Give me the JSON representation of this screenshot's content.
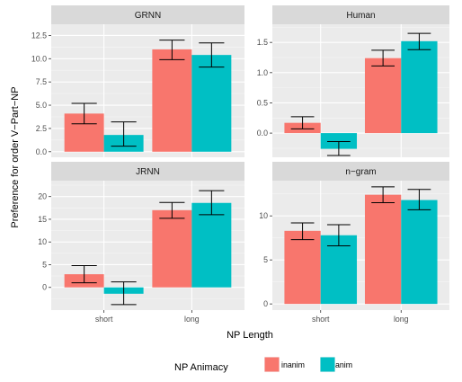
{
  "chart_data": {
    "type": "bar",
    "layout": "facet-grid 2x2",
    "xlabel": "NP Length",
    "ylabel": "Preference for order V−Part−NP",
    "categories": [
      "short",
      "long"
    ],
    "legend": {
      "title": "NP Animacy",
      "position": "bottom",
      "entries": [
        {
          "name": "inanim",
          "color": "#F8766D"
        },
        {
          "name": "anim",
          "color": "#00BFC4"
        }
      ]
    },
    "grid": true,
    "panel_background": "#EBEBEB",
    "strip_background": "#D9D9D9",
    "panels": [
      {
        "title": "GRNN",
        "ylim": [
          -0.6,
          13.7
        ],
        "yticks": [
          0,
          2.5,
          5,
          7.5,
          10,
          12.5
        ],
        "ytick_labels": [
          "0.0",
          "2.5",
          "5.0",
          "7.5",
          "10.0",
          "12.5"
        ],
        "series": [
          {
            "name": "inanim",
            "values": [
              4.1,
              11.0
            ],
            "err_low": [
              3.0,
              9.9
            ],
            "err_high": [
              5.2,
              12.0
            ]
          },
          {
            "name": "anim",
            "values": [
              1.8,
              10.4
            ],
            "err_low": [
              0.6,
              9.1
            ],
            "err_high": [
              3.2,
              11.7
            ]
          }
        ]
      },
      {
        "title": "Human",
        "ylim": [
          -0.4,
          1.8
        ],
        "yticks": [
          0,
          0.5,
          1,
          1.5
        ],
        "ytick_labels": [
          "0.0",
          "0.5",
          "1.0",
          "1.5"
        ],
        "series": [
          {
            "name": "inanim",
            "values": [
              0.17,
              1.24
            ],
            "err_low": [
              0.07,
              1.11
            ],
            "err_high": [
              0.27,
              1.37
            ]
          },
          {
            "name": "anim",
            "values": [
              -0.26,
              1.52
            ],
            "err_low": [
              -0.37,
              1.38
            ],
            "err_high": [
              -0.14,
              1.65
            ]
          }
        ]
      },
      {
        "title": "JRNN",
        "ylim": [
          -5,
          23.5
        ],
        "yticks": [
          0,
          5,
          10,
          15,
          20
        ],
        "ytick_labels": [
          "0",
          "5",
          "10",
          "15",
          "20"
        ],
        "series": [
          {
            "name": "inanim",
            "values": [
              2.9,
              17.0
            ],
            "err_low": [
              1.0,
              15.2
            ],
            "err_high": [
              4.8,
              18.7
            ]
          },
          {
            "name": "anim",
            "values": [
              -1.4,
              18.6
            ],
            "err_low": [
              -3.8,
              16.0
            ],
            "err_high": [
              1.2,
              21.3
            ]
          }
        ]
      },
      {
        "title": "n−gram",
        "ylim": [
          -0.7,
          14.0
        ],
        "yticks": [
          0,
          5,
          10
        ],
        "ytick_labels": [
          "0",
          "5",
          "10"
        ],
        "series": [
          {
            "name": "inanim",
            "values": [
              8.3,
              12.4
            ],
            "err_low": [
              7.3,
              11.5
            ],
            "err_high": [
              9.2,
              13.3
            ]
          },
          {
            "name": "anim",
            "values": [
              7.8,
              11.8
            ],
            "err_low": [
              6.6,
              10.7
            ],
            "err_high": [
              9.0,
              13.0
            ]
          }
        ]
      }
    ]
  }
}
